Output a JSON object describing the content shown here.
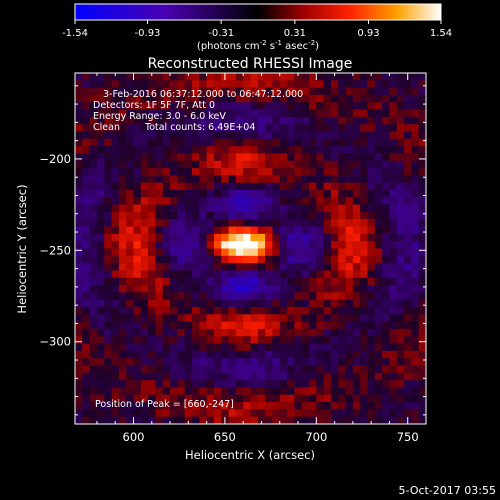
{
  "colorbar": {
    "ticks": [
      "-1.54",
      "-0.93",
      "-0.31",
      "0.31",
      "0.93",
      "1.54"
    ],
    "values": [
      -1.54,
      -0.93,
      -0.31,
      0.31,
      0.93,
      1.54
    ],
    "unit_main": "(photons cm",
    "unit_sup1": "-2",
    "unit_mid": " s",
    "unit_sup2": "-1",
    "unit_mid2": " asec",
    "unit_sup3": "-2",
    "unit_end": ")"
  },
  "title": "Reconstructed RHESSI Image",
  "annotations": {
    "time": "3-Feb-2016 06:37:12.000 to 06:47:12.000",
    "detectors": "Detectors: 1F 5F 7F, Att 0",
    "energy": "Energy Range: 3.0 - 6.0 keV",
    "clean_label": "Clean",
    "counts": "Total counts: 6.49E+04",
    "peak": "Position of Peak = [660,-247]"
  },
  "footer": {
    "date": "5-Oct-2017 03:55"
  },
  "chart_data": {
    "type": "heatmap",
    "title": "Reconstructed RHESSI Image",
    "xlabel": "Heliocentric X (arcsec)",
    "ylabel": "Heliocentric Y (arcsec)",
    "xlim": [
      568,
      760
    ],
    "ylim": [
      -345,
      -153
    ],
    "xticks": [
      600,
      650,
      700,
      750
    ],
    "yticks": [
      -200,
      -250,
      -300
    ],
    "xtick_labels": [
      "600",
      "650",
      "700",
      "750"
    ],
    "ytick_labels": [
      "−200",
      "−250",
      "−300"
    ],
    "zlim": [
      -1.54,
      1.54
    ],
    "peak": [
      660,
      -247
    ],
    "colors": {
      "low": "#0000ff",
      "mid": "#000000",
      "high": "#ffffff",
      "accent": "#ff0000"
    }
  }
}
